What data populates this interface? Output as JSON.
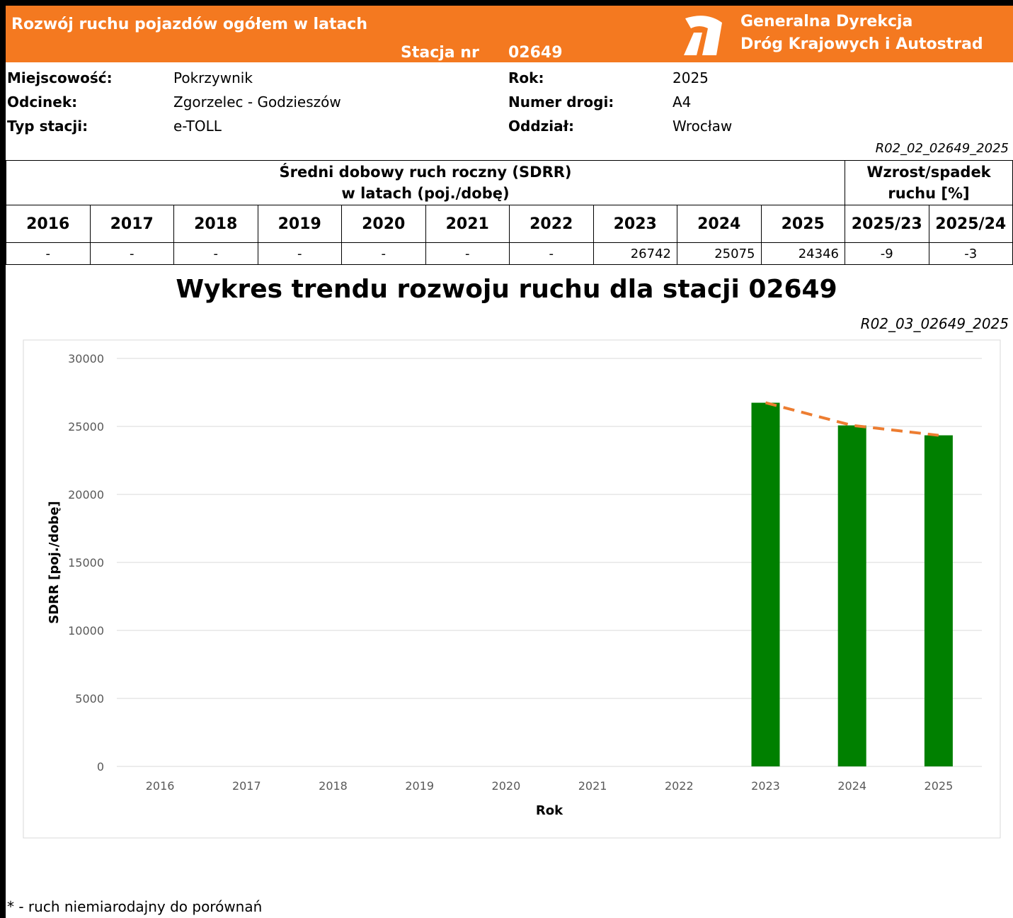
{
  "header": {
    "title": "Rozwój ruchu pojazdów ogółem w latach",
    "station_label": "Stacja nr",
    "station": "02649",
    "org_line1": "Generalna Dyrekcja",
    "org_line2": "Dróg Krajowych i Autostrad"
  },
  "info": {
    "rows": [
      [
        "Miejscowość:",
        "Pokrzywnik",
        "Rok:",
        "2025"
      ],
      [
        "Odcinek:",
        "Zgorzelec - Godzieszów",
        "Numer drogi:",
        "A4"
      ],
      [
        "Typ stacji:",
        "e-TOLL",
        "Oddział:",
        "Wrocław"
      ]
    ],
    "code": "R02_02_02649_2025"
  },
  "table": {
    "header_sdrr": [
      "Średni dobowy ruch roczny (SDRR)",
      "w latach (poj./dobę)"
    ],
    "header_change": [
      "Wzrost/spadek",
      "ruchu [%]"
    ],
    "columns": [
      "2016",
      "2017",
      "2018",
      "2019",
      "2020",
      "2021",
      "2022",
      "2023",
      "2024",
      "2025",
      "2025/23",
      "2025/24"
    ],
    "values": [
      "-",
      "-",
      "-",
      "-",
      "-",
      "-",
      "-",
      26742,
      25075,
      24346,
      -9,
      -3
    ]
  },
  "chart_code": "R02_03_02649_2025",
  "chart_data": {
    "type": "bar",
    "title": "Wykres trendu rozwoju ruchu dla stacji 02649",
    "categories": [
      "2016",
      "2017",
      "2018",
      "2019",
      "2020",
      "2021",
      "2022",
      "2023",
      "2024",
      "2025"
    ],
    "values": [
      null,
      null,
      null,
      null,
      null,
      null,
      null,
      26742,
      25075,
      24346
    ],
    "color": "#008000",
    "trend_color": "#ed7d31",
    "trend_dashed": true,
    "x_label": "Rok",
    "y_label": "SDRR [poj./dobę]",
    "ylim": [
      0,
      30000
    ],
    "yticks": [
      0,
      5000,
      10000,
      15000,
      20000,
      25000,
      30000
    ],
    "grid": true
  },
  "footer": "* - ruch niemiarodajny do porównań"
}
